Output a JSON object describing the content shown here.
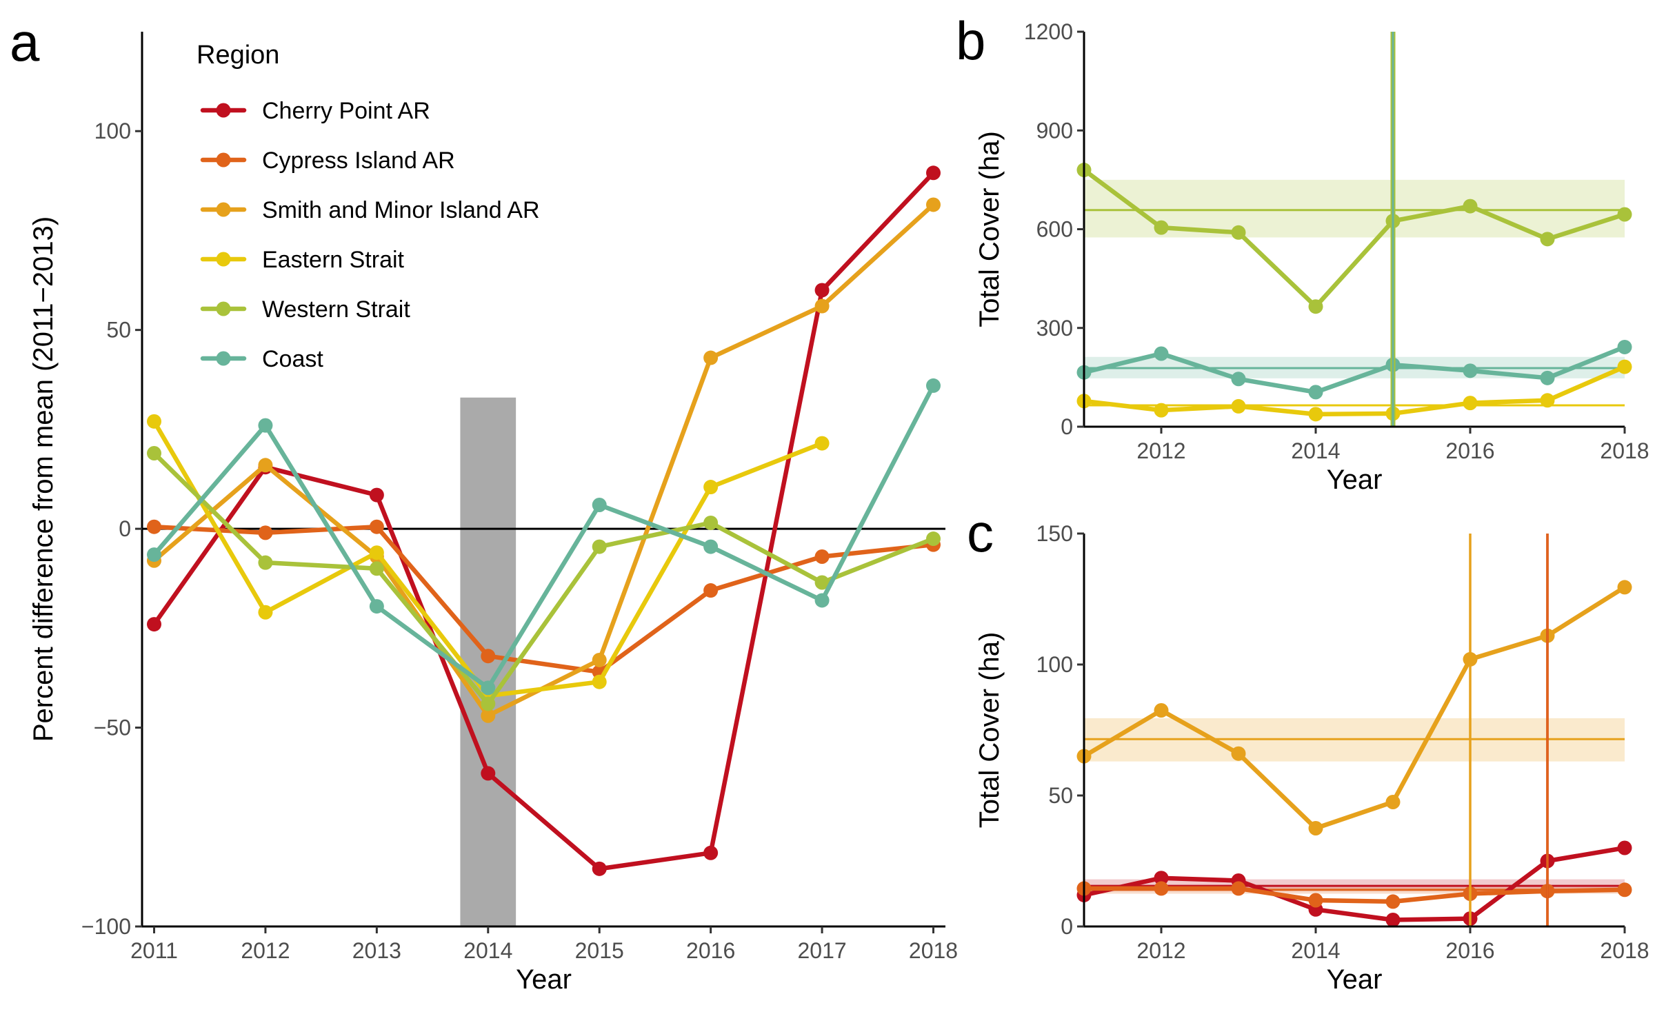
{
  "panel_letters": [
    "a",
    "b",
    "c"
  ],
  "legend": {
    "title": "Region",
    "items": [
      "Cherry Point AR",
      "Cypress Island AR",
      "Smith and Minor Island AR",
      "Eastern Strait",
      "Western Strait",
      "Coast"
    ]
  },
  "colors": {
    "Cherry Point AR": "#c0101f",
    "Cypress Island AR": "#e0631a",
    "Smith and Minor Island AR": "#e6a11c",
    "Eastern Strait": "#e8c90c",
    "Western Strait": "#a9c23a",
    "Coast": "#67b49a",
    "highlight": "#aaaaaa"
  },
  "chart_data": [
    {
      "panel": "a",
      "type": "line",
      "xlabel": "Year",
      "ylabel": "Percent difference from mean (2011−2013)",
      "x": [
        2011,
        2012,
        2013,
        2014,
        2015,
        2016,
        2017,
        2018
      ],
      "xlim": [
        2011,
        2018
      ],
      "ylim": [
        -100,
        125
      ],
      "yticks": [
        -100,
        -50,
        0,
        50,
        100
      ],
      "ytick_labels": [
        "−100",
        "−50",
        "0",
        "50",
        "100"
      ],
      "xticks": [
        2011,
        2012,
        2013,
        2014,
        2015,
        2016,
        2017,
        2018
      ],
      "zero_line": 0,
      "highlight_band": [
        2013.75,
        2014.25,
        -100,
        33
      ],
      "series": [
        {
          "name": "Cherry Point AR",
          "values": [
            -24,
            15.5,
            8.5,
            -61.5,
            -85.5,
            -81.5,
            60,
            89.5
          ]
        },
        {
          "name": "Cypress Island AR",
          "values": [
            0.5,
            -1,
            0.5,
            -32,
            -36,
            -15.5,
            -7,
            -4
          ]
        },
        {
          "name": "Smith and Minor Island AR",
          "values": [
            -8,
            16,
            -7,
            -47,
            -33,
            43,
            56,
            81.5
          ]
        },
        {
          "name": "Eastern Strait",
          "values": [
            27,
            -21,
            -6,
            -42,
            -38.5,
            10.5,
            21.5,
            null
          ]
        },
        {
          "name": "Western Strait",
          "values": [
            19,
            -8.5,
            -10,
            -44,
            -4.5,
            1.5,
            -13.5,
            -2.5
          ]
        },
        {
          "name": "Coast",
          "values": [
            -6.5,
            26,
            -19.5,
            -40,
            6,
            -4.5,
            -18,
            36
          ]
        }
      ]
    },
    {
      "panel": "b",
      "type": "line",
      "xlabel": "Year",
      "ylabel": "Total Cover (ha)",
      "x": [
        2011,
        2012,
        2013,
        2014,
        2015,
        2016,
        2017,
        2018
      ],
      "xlim": [
        2011,
        2018
      ],
      "ylim": [
        0,
        1200
      ],
      "yticks": [
        0,
        300,
        600,
        900,
        1200
      ],
      "xticks": [
        2012,
        2014,
        2016,
        2018
      ],
      "series": [
        {
          "name": "Western Strait",
          "values": [
            780,
            605,
            590,
            365,
            625,
            670,
            570,
            645
          ],
          "mean": 658,
          "band": [
            575,
            750
          ],
          "vline": 2015
        },
        {
          "name": "Coast",
          "values": [
            165,
            222,
            145,
            105,
            188,
            170,
            148,
            242
          ],
          "mean": 178,
          "band": [
            147,
            212
          ],
          "vline": 2015
        },
        {
          "name": "Eastern Strait",
          "values": [
            78,
            50,
            62,
            38,
            40,
            72,
            80,
            182
          ],
          "mean": 65
        }
      ]
    },
    {
      "panel": "c",
      "type": "line",
      "xlabel": "Year",
      "ylabel": "Total Cover (ha)",
      "x": [
        2011,
        2012,
        2013,
        2014,
        2015,
        2016,
        2017,
        2018
      ],
      "xlim": [
        2011,
        2018
      ],
      "ylim": [
        0,
        150
      ],
      "yticks": [
        0,
        50,
        100,
        150
      ],
      "xticks": [
        2012,
        2014,
        2016,
        2018
      ],
      "series": [
        {
          "name": "Smith and Minor Island AR",
          "values": [
            65,
            82.5,
            66,
            37.5,
            47.5,
            102,
            111,
            129.5
          ],
          "mean": 71.5,
          "band": [
            63,
            79.5
          ],
          "vline": 2016
        },
        {
          "name": "Cherry Point AR",
          "values": [
            12,
            18.5,
            17.5,
            6.5,
            2.5,
            3,
            25,
            30
          ],
          "mean": 15.5,
          "band": [
            13.5,
            18
          ],
          "vline": 2017
        },
        {
          "name": "Cypress Island AR",
          "values": [
            14.5,
            14.5,
            14.5,
            10,
            9.5,
            12.5,
            13.5,
            14
          ],
          "mean": 14,
          "band": [
            12.5,
            15
          ],
          "vline": 2017
        }
      ]
    }
  ]
}
